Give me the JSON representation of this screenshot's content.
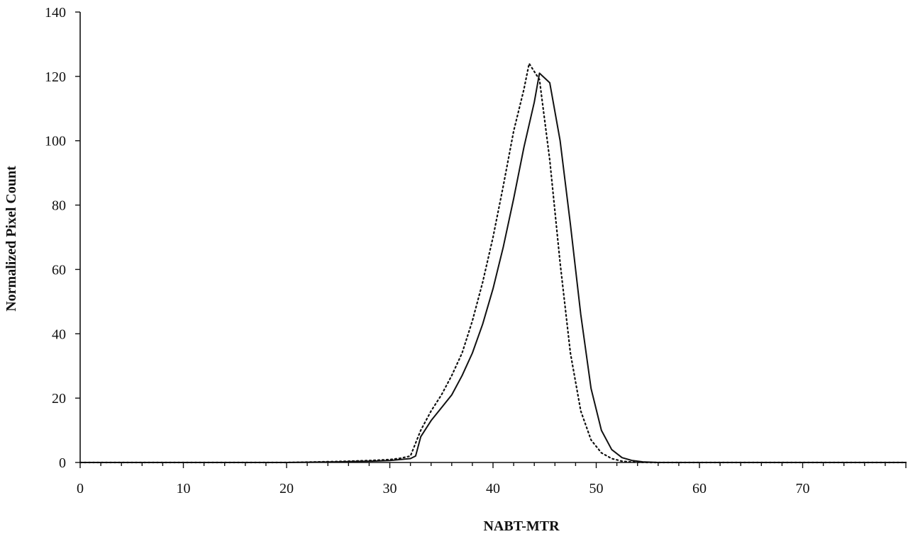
{
  "chart_data": {
    "type": "line",
    "title": "",
    "xlabel": "NABT-MTR",
    "ylabel": "Normalized Pixel Count",
    "xlim": [
      0,
      80
    ],
    "ylim": [
      0,
      140
    ],
    "x_ticks": [
      0,
      10,
      20,
      30,
      40,
      50,
      60,
      70
    ],
    "y_ticks": [
      0,
      20,
      40,
      60,
      80,
      100,
      120,
      140
    ],
    "grid": false,
    "legend": "none",
    "series": [
      {
        "style": "solid",
        "color": "#111111",
        "x": [
          0,
          10,
          20,
          25,
          28,
          30,
          31,
          32,
          32.5,
          33,
          34,
          35,
          36,
          37,
          38,
          39,
          40,
          41,
          42,
          43,
          44,
          44.5,
          45.5,
          46.5,
          47.5,
          48.5,
          49.5,
          50.5,
          51.5,
          52.5,
          53.5,
          54.5,
          56,
          60,
          70,
          80
        ],
        "y": [
          0,
          0,
          0,
          0.2,
          0.4,
          0.6,
          0.9,
          1.2,
          2,
          8,
          13,
          17,
          21,
          27,
          34,
          43,
          54,
          67,
          82,
          98,
          112,
          121,
          118,
          100,
          74,
          46,
          23,
          10,
          4,
          1.5,
          0.6,
          0.2,
          0,
          0,
          0,
          0
        ]
      },
      {
        "style": "dotted",
        "color": "#111111",
        "x": [
          0,
          10,
          20,
          25,
          28,
          30,
          31,
          32,
          33,
          34,
          35,
          36,
          37,
          38,
          39,
          40,
          41,
          42,
          43,
          43.5,
          44.5,
          45.5,
          46.5,
          47.5,
          48.5,
          49.5,
          50.5,
          51.5,
          52.5,
          53.5,
          55,
          60,
          70,
          80
        ],
        "y": [
          0,
          0,
          0,
          0.3,
          0.6,
          0.9,
          1.3,
          2,
          10,
          16,
          21,
          27,
          34,
          44,
          56,
          70,
          86,
          103,
          116,
          124,
          119,
          94,
          62,
          34,
          16,
          7,
          3,
          1.2,
          0.4,
          0.1,
          0,
          0,
          0,
          0
        ]
      }
    ]
  }
}
